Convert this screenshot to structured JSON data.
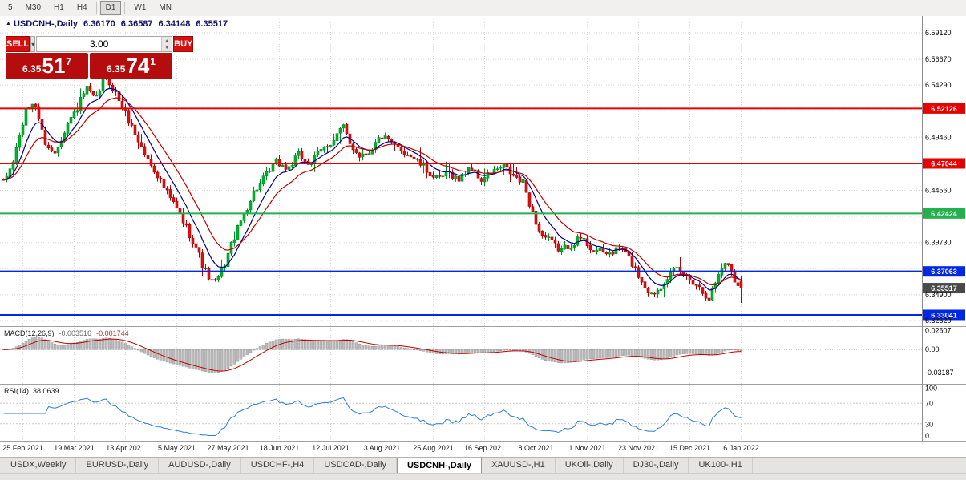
{
  "toolbar": {
    "timeframes": [
      {
        "label": "5",
        "active": false
      },
      {
        "label": "M30",
        "active": false
      },
      {
        "label": "H1",
        "active": false
      },
      {
        "label": "H4",
        "active": false
      },
      {
        "label": "D1",
        "active": true
      },
      {
        "label": "W1",
        "active": false
      },
      {
        "label": "MN",
        "active": false
      }
    ]
  },
  "icons": {
    "symbol_marker": "▲",
    "chevron_down": "▾",
    "spinner_up": "▲",
    "spinner_down": "▼"
  },
  "chart": {
    "title": {
      "symbol": "USDCNH-,Daily",
      "open": "6.36170",
      "high": "6.36587",
      "low": "6.34148",
      "close": "6.35517"
    },
    "trade_panel": {
      "sell_label": "SELL",
      "buy_label": "BUY",
      "volume": "3.00",
      "sell_price": {
        "prefix": "6.35",
        "big": "51",
        "sup": "7"
      },
      "buy_price": {
        "prefix": "6.35",
        "big": "74",
        "sup": "1"
      }
    }
  },
  "chart_data": {
    "type": "candlestick",
    "title": "USDCNH-,Daily",
    "last_ohlc": {
      "open": 6.3617,
      "high": 6.36587,
      "low": 6.34148,
      "close": 6.35517
    },
    "x_labels": [
      "25 Feb 2021",
      "19 Mar 2021",
      "13 Apr 2021",
      "5 May 2021",
      "27 May 2021",
      "18 Jun 2021",
      "12 Jul 2021",
      "3 Aug 2021",
      "25 Aug 2021",
      "16 Sep 2021",
      "8 Oct 2021",
      "1 Nov 2021",
      "23 Nov 2021",
      "15 Dec 2021",
      "6 Jan 2022"
    ],
    "y_axis": {
      "visible_ticks": [
        {
          "label": "6.59120",
          "value": 6.5912
        },
        {
          "label": "6.56670",
          "value": 6.5667
        },
        {
          "label": "6.54290",
          "value": 6.5429
        },
        {
          "label": "6.49460",
          "value": 6.4946
        },
        {
          "label": "6.44560",
          "value": 6.4456
        },
        {
          "label": "6.39730",
          "value": 6.3973
        },
        {
          "label": "6.34900",
          "value": 6.349
        },
        {
          "label": "6.32520",
          "value": 6.3252
        }
      ],
      "grid_values": [
        6.5912,
        6.5667,
        6.5429,
        6.5191,
        6.4946,
        6.4708,
        6.4456,
        6.4215,
        6.3973,
        6.3733,
        6.349,
        6.3252
      ]
    },
    "level_lines": [
      {
        "value": 6.52126,
        "label": "6.52126",
        "color": "#e60000"
      },
      {
        "value": 6.47044,
        "label": "6.47044",
        "color": "#e60000"
      },
      {
        "value": 6.42424,
        "label": "6.42424",
        "color": "#22b14c"
      },
      {
        "value": 6.37063,
        "label": "6.37063",
        "color": "#0026e6"
      },
      {
        "value": 6.33041,
        "label": "6.33041",
        "color": "#0026e6"
      }
    ],
    "current_price": {
      "value": 6.35517,
      "label": "6.35517",
      "color": "#4a4a4a"
    },
    "candles": {
      "count": 231,
      "price_path_anchors": [
        [
          0,
          6.452
        ],
        [
          0.012,
          6.47
        ],
        [
          0.03,
          6.518
        ],
        [
          0.042,
          6.528
        ],
        [
          0.055,
          6.492
        ],
        [
          0.068,
          6.478
        ],
        [
          0.085,
          6.505
        ],
        [
          0.1,
          6.522
        ],
        [
          0.112,
          6.54
        ],
        [
          0.125,
          6.528
        ],
        [
          0.137,
          6.552
        ],
        [
          0.15,
          6.538
        ],
        [
          0.163,
          6.52
        ],
        [
          0.178,
          6.498
        ],
        [
          0.192,
          6.478
        ],
        [
          0.207,
          6.462
        ],
        [
          0.22,
          6.445
        ],
        [
          0.235,
          6.428
        ],
        [
          0.25,
          6.408
        ],
        [
          0.262,
          6.392
        ],
        [
          0.272,
          6.372
        ],
        [
          0.285,
          6.358
        ],
        [
          0.297,
          6.372
        ],
        [
          0.31,
          6.398
        ],
        [
          0.325,
          6.422
        ],
        [
          0.34,
          6.445
        ],
        [
          0.355,
          6.458
        ],
        [
          0.37,
          6.472
        ],
        [
          0.385,
          6.465
        ],
        [
          0.4,
          6.478
        ],
        [
          0.415,
          6.47
        ],
        [
          0.43,
          6.482
        ],
        [
          0.447,
          6.492
        ],
        [
          0.46,
          6.505
        ],
        [
          0.47,
          6.488
        ],
        [
          0.483,
          6.478
        ],
        [
          0.497,
          6.482
        ],
        [
          0.512,
          6.496
        ],
        [
          0.527,
          6.488
        ],
        [
          0.542,
          6.482
        ],
        [
          0.557,
          6.475
        ],
        [
          0.572,
          6.465
        ],
        [
          0.588,
          6.455
        ],
        [
          0.603,
          6.462
        ],
        [
          0.618,
          6.455
        ],
        [
          0.632,
          6.468
        ],
        [
          0.647,
          6.455
        ],
        [
          0.662,
          6.462
        ],
        [
          0.678,
          6.468
        ],
        [
          0.692,
          6.458
        ],
        [
          0.705,
          6.452
        ],
        [
          0.717,
          6.425
        ],
        [
          0.728,
          6.405
        ],
        [
          0.742,
          6.398
        ],
        [
          0.755,
          6.39
        ],
        [
          0.77,
          6.396
        ],
        [
          0.783,
          6.402
        ],
        [
          0.797,
          6.392
        ],
        [
          0.812,
          6.388
        ],
        [
          0.825,
          6.388
        ],
        [
          0.838,
          6.393
        ],
        [
          0.852,
          6.378
        ],
        [
          0.865,
          6.362
        ],
        [
          0.878,
          6.349
        ],
        [
          0.89,
          6.356
        ],
        [
          0.902,
          6.368
        ],
        [
          0.913,
          6.372
        ],
        [
          0.925,
          6.366
        ],
        [
          0.938,
          6.36
        ],
        [
          0.948,
          6.352
        ],
        [
          0.957,
          6.346
        ],
        [
          0.967,
          6.364
        ],
        [
          0.978,
          6.38
        ],
        [
          0.986,
          6.372
        ],
        [
          0.993,
          6.36
        ],
        [
          1,
          6.3552
        ]
      ]
    },
    "moving_averages": [
      {
        "period": 8,
        "color": "#00008b"
      },
      {
        "period": 16,
        "color": "#c00000"
      }
    ],
    "indicators": {
      "macd": {
        "name": "MACD(12,26,9)",
        "main_value": "-0.003516",
        "signal_value": "-0.001744",
        "fast": 12,
        "slow": 26,
        "signal": 9,
        "axis_ticks": [
          {
            "label": "0.02607",
            "value": 0.02607
          },
          {
            "label": "0.00",
            "value": 0
          },
          {
            "label": "-0.03187",
            "value": -0.03187
          }
        ],
        "range": [
          -0.0441,
          0.028
        ],
        "histogram_color": "#bdbdbd",
        "histogram_border": "#8c8c8c",
        "signal_color": "#c00000"
      },
      "rsi": {
        "name": "RSI(14)",
        "period": 14,
        "value": "38.0639",
        "axis_ticks": [
          {
            "label": "100",
            "value": 100
          },
          {
            "label": "70",
            "value": 70
          },
          {
            "label": "30",
            "value": 30
          },
          {
            "label": "0",
            "value": 0
          }
        ],
        "levels": [
          70,
          30
        ],
        "color": "#2f7ed8"
      }
    },
    "colors": {
      "bull": "#00b22d",
      "bull_border": "#008f24",
      "bear": "#e01010",
      "bear_border": "#a80707",
      "grid": "#d6d6d6",
      "background": "#ffffff",
      "axis_text": "#000000",
      "separator": "#a0a0a0"
    }
  },
  "tabs": [
    {
      "label": "USDX,Weekly",
      "active": false
    },
    {
      "label": "EURUSD-,Daily",
      "active": false
    },
    {
      "label": "AUDUSD-,Daily",
      "active": false
    },
    {
      "label": "USDCHF-,H4",
      "active": false
    },
    {
      "label": "USDCAD-,Daily",
      "active": false
    },
    {
      "label": "USDCNH-,Daily",
      "active": true
    },
    {
      "label": "XAUUSD-,H1",
      "active": false
    },
    {
      "label": "UKOil-,Daily",
      "active": false
    },
    {
      "label": "DJ30-,Daily",
      "active": false
    },
    {
      "label": "UK100-,H1",
      "active": false
    }
  ]
}
